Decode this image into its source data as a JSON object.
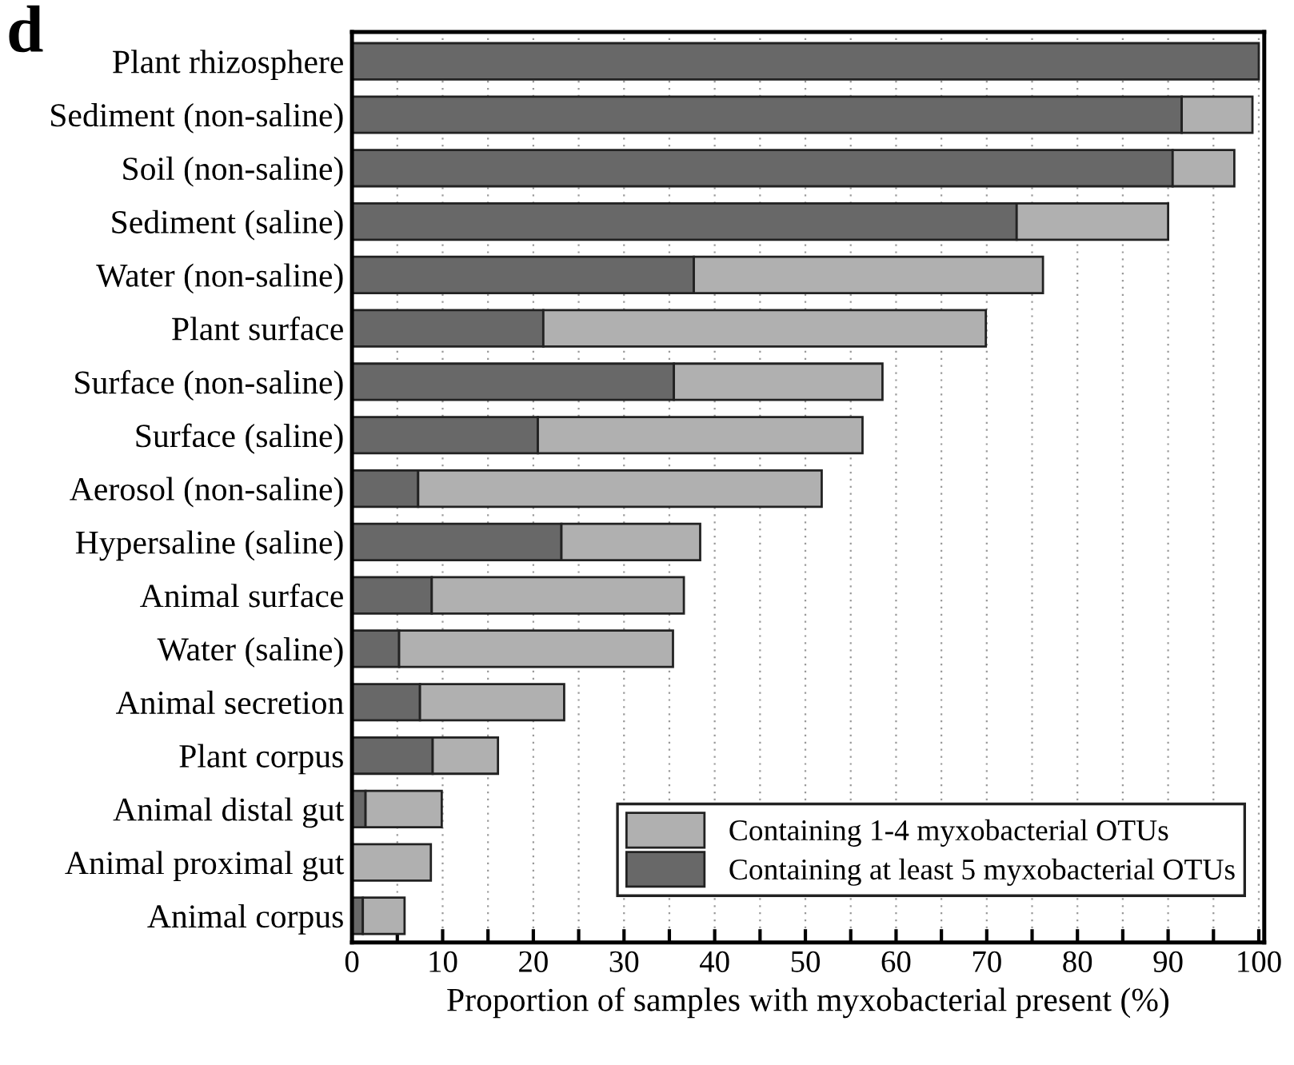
{
  "chart_data": {
    "type": "bar",
    "orientation": "horizontal",
    "stacked": true,
    "title": "d",
    "xlabel": "Proportion of samples with myxobacterial present (%)",
    "categories": [
      "Plant rhizosphere",
      "Sediment (non-saline)",
      "Soil (non-saline)",
      "Sediment (saline)",
      "Water (non-saline)",
      "Plant surface",
      "Surface (non-saline)",
      "Surface (saline)",
      "Aerosol (non-saline)",
      "Hypersaline (saline)",
      "Animal surface",
      "Water (saline)",
      "Animal secretion",
      "Plant corpus",
      "Animal distal gut",
      "Animal proximal gut",
      "Animal corpus"
    ],
    "series": [
      {
        "name": "Containing at least 5 myxobacterial OTUs",
        "color": "#686868",
        "values": [
          100,
          91.5,
          90.5,
          73.3,
          37.7,
          21.1,
          35.5,
          20.5,
          7.3,
          23.1,
          8.8,
          5.2,
          7.5,
          8.9,
          1.5,
          null,
          1.2
        ]
      },
      {
        "name": "Containing 1-4 myxobacterial OTUs",
        "color": "#b0b0b0",
        "values": [
          null,
          7.8,
          6.8,
          16.7,
          38.5,
          48.8,
          23.0,
          35.8,
          44.5,
          15.3,
          27.8,
          30.2,
          15.9,
          7.2,
          8.4,
          8.7,
          4.6
        ]
      }
    ],
    "xlim": [
      0,
      100.6
    ],
    "xticks": [
      0,
      {
        "value": 5,
        "label": null
      },
      10,
      {
        "value": 15,
        "label": null
      },
      20,
      {
        "value": 25,
        "label": null
      },
      30,
      {
        "value": 35,
        "label": null
      },
      40,
      {
        "value": 45,
        "label": null
      },
      50,
      {
        "value": 55,
        "label": null
      },
      60,
      {
        "value": 65,
        "label": null
      },
      70,
      {
        "value": 75,
        "label": null
      },
      80,
      {
        "value": 85,
        "label": null
      },
      90,
      {
        "value": 95,
        "label": null
      },
      100
    ],
    "grid": "x",
    "legend": "bottom right"
  }
}
